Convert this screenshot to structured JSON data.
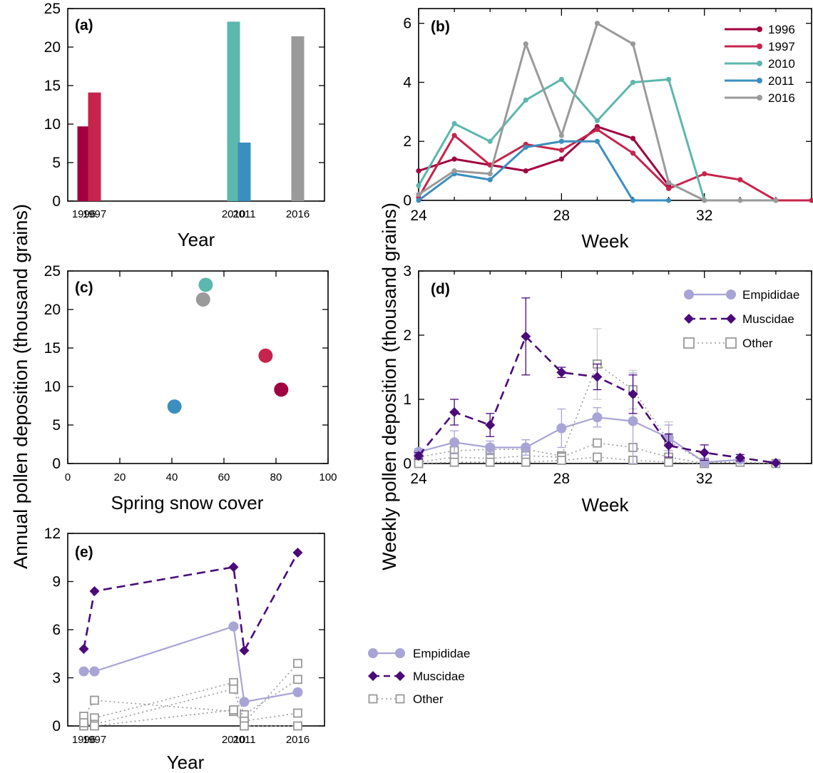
{
  "colors": {
    "1996": "#a0003f",
    "1997": "#c6244c",
    "2010": "#5cb7ad",
    "2011": "#3b8fbf",
    "2016": "#9a9a9a",
    "Empididae": "#a8a4d6",
    "Muscidae": "#4a0a7a",
    "Other": "#999999"
  },
  "shared_labels": {
    "annual_ylabel": "Annual pollen deposition (thousand grains)",
    "weekly_ylabel": "Weekly pollen deposition (thousand grains)"
  },
  "chart_data": [
    {
      "id": "a",
      "panel": "(a)",
      "type": "bar",
      "categories": [
        "1996",
        "1997",
        "2010",
        "2011",
        "2016"
      ],
      "values": [
        9.7,
        14.1,
        23.3,
        7.6,
        21.4
      ],
      "xlabel": "Year",
      "ylim": [
        0,
        25
      ],
      "yticks": [
        "0",
        "5",
        "10",
        "15",
        "20",
        "25"
      ]
    },
    {
      "id": "b",
      "panel": "(b)",
      "type": "line",
      "xlabel": "Week",
      "xlim": [
        24,
        35
      ],
      "ylim": [
        0,
        6.5
      ],
      "xticks": [
        "24",
        "28",
        "32"
      ],
      "yticks": [
        "0",
        "2",
        "4",
        "6"
      ],
      "legend_position": "top-right",
      "series": [
        {
          "name": "1996",
          "x": [
            24,
            25,
            26,
            27,
            28,
            29,
            30,
            31
          ],
          "y": [
            1.0,
            1.4,
            1.2,
            1.0,
            1.4,
            2.5,
            2.1,
            0.5
          ]
        },
        {
          "name": "1997",
          "x": [
            24,
            25,
            26,
            27,
            28,
            29,
            30,
            31,
            32,
            33,
            34,
            35
          ],
          "y": [
            0.1,
            2.2,
            1.2,
            1.9,
            1.7,
            2.4,
            1.6,
            0.4,
            0.9,
            0.7,
            0.0,
            0.0
          ]
        },
        {
          "name": "2010",
          "x": [
            24,
            25,
            26,
            27,
            28,
            29,
            30,
            31,
            32
          ],
          "y": [
            0.5,
            2.6,
            2.0,
            3.4,
            4.1,
            2.7,
            4.0,
            4.1,
            0.0
          ]
        },
        {
          "name": "2011",
          "x": [
            24,
            25,
            26,
            27,
            28,
            29,
            30,
            31
          ],
          "y": [
            0.0,
            0.9,
            0.7,
            1.8,
            2.0,
            2.0,
            0.0,
            0.0
          ]
        },
        {
          "name": "2016",
          "x": [
            24,
            25,
            26,
            27,
            28,
            29,
            30,
            31,
            32,
            33,
            34
          ],
          "y": [
            0.2,
            1.0,
            0.9,
            5.3,
            2.2,
            6.0,
            5.3,
            0.6,
            0.0,
            0.0,
            0.0
          ]
        }
      ]
    },
    {
      "id": "c",
      "panel": "(c)",
      "type": "scatter",
      "xlabel": "Spring snow cover",
      "xlim": [
        0,
        100
      ],
      "ylim": [
        0,
        25
      ],
      "xticks": [
        "0",
        "20",
        "40",
        "60",
        "80",
        "100"
      ],
      "yticks": [
        "0",
        "5",
        "10",
        "15",
        "20",
        "25"
      ],
      "points": [
        {
          "year": "1996",
          "x": 82,
          "y": 9.6
        },
        {
          "year": "1997",
          "x": 76,
          "y": 14.0
        },
        {
          "year": "2010",
          "x": 53,
          "y": 23.2
        },
        {
          "year": "2011",
          "x": 41,
          "y": 7.4
        },
        {
          "year": "2016",
          "x": 52,
          "y": 21.3
        }
      ]
    },
    {
      "id": "d",
      "panel": "(d)",
      "type": "line",
      "xlabel": "Week",
      "xlim": [
        24,
        35
      ],
      "ylim": [
        0,
        3
      ],
      "xticks": [
        "24",
        "28",
        "32"
      ],
      "yticks": [
        "0",
        "1",
        "2",
        "3"
      ],
      "legend_position": "top-right",
      "series": [
        {
          "name": "Empididae",
          "x": [
            24,
            25,
            26,
            27,
            28,
            29,
            30,
            31,
            32,
            33
          ],
          "y": [
            0.18,
            0.33,
            0.25,
            0.25,
            0.55,
            0.72,
            0.66,
            0.4,
            0.02,
            0.06
          ],
          "err": [
            0.05,
            0.18,
            0.1,
            0.12,
            0.3,
            0.15,
            0.75,
            0.2,
            0.02,
            0.03
          ]
        },
        {
          "name": "Muscidae",
          "x": [
            24,
            25,
            26,
            27,
            28,
            29,
            30,
            31,
            32,
            33,
            34
          ],
          "y": [
            0.12,
            0.8,
            0.6,
            1.98,
            1.42,
            1.35,
            1.08,
            0.28,
            0.17,
            0.09,
            0.01
          ],
          "err": [
            0.05,
            0.2,
            0.18,
            0.6,
            0.08,
            0.2,
            0.3,
            0.18,
            0.12,
            0.05,
            0.01
          ]
        },
        {
          "name": "Other",
          "x": [
            24,
            25,
            26,
            27,
            28,
            29,
            30,
            31,
            32,
            33,
            34
          ],
          "y": [
            0.1,
            0.2,
            0.22,
            0.22,
            0.12,
            1.55,
            1.15,
            0.35,
            0.02,
            0.02,
            0.0
          ],
          "err": [
            0.05,
            0.1,
            0.08,
            0.15,
            0.05,
            0.55,
            0.3,
            0.3,
            0.02,
            0.01,
            0.0
          ]
        },
        {
          "name": "Other",
          "x": [
            24,
            25,
            26,
            27,
            28,
            29,
            30,
            31,
            32
          ],
          "y": [
            0.02,
            0.1,
            0.08,
            0.12,
            0.1,
            0.32,
            0.25,
            0.1,
            0.0
          ],
          "err": []
        },
        {
          "name": "Other",
          "x": [
            24,
            25,
            26,
            27,
            28,
            29,
            30,
            31,
            32
          ],
          "y": [
            0.0,
            0.02,
            0.02,
            0.02,
            0.05,
            0.1,
            0.05,
            0.02,
            0.0
          ],
          "err": []
        }
      ]
    },
    {
      "id": "e",
      "panel": "(e)",
      "type": "line",
      "xlabel": "Year",
      "categories": [
        "1996",
        "1997",
        "2010",
        "2011",
        "2016"
      ],
      "ylim": [
        0,
        12
      ],
      "yticks": [
        "0",
        "3",
        "6",
        "9",
        "12"
      ],
      "legend_position": "right, outside",
      "series": [
        {
          "name": "Empididae",
          "values": [
            3.4,
            3.4,
            6.2,
            1.5,
            2.1
          ]
        },
        {
          "name": "Muscidae",
          "values": [
            4.8,
            8.4,
            9.9,
            4.7,
            10.8
          ]
        },
        {
          "name": "Other",
          "values": [
            0.6,
            1.6,
            0.9,
            0.2,
            3.9
          ]
        },
        {
          "name": "Other",
          "values": [
            0.1,
            0.5,
            2.7,
            0.7,
            2.9
          ]
        },
        {
          "name": "Other",
          "values": [
            0.0,
            0.1,
            2.3,
            0.3,
            0.8
          ]
        },
        {
          "name": "Other",
          "values": [
            0.2,
            0.0,
            1.0,
            0.0,
            0.0
          ]
        }
      ]
    }
  ],
  "legends": {
    "b": [
      {
        "label": "1996"
      },
      {
        "label": "1997"
      },
      {
        "label": "2010"
      },
      {
        "label": "2011"
      },
      {
        "label": "2016"
      }
    ],
    "d": [
      {
        "label": "Empididae",
        "series": "Empididae"
      },
      {
        "label": "Muscidae",
        "series": "Muscidae"
      },
      {
        "label": "Other",
        "series": "Other"
      }
    ],
    "e": [
      {
        "label": "Empididae",
        "series": "Empididae"
      },
      {
        "label": "Muscidae",
        "series": "Muscidae"
      },
      {
        "label": "Other",
        "series": "Other"
      }
    ]
  }
}
